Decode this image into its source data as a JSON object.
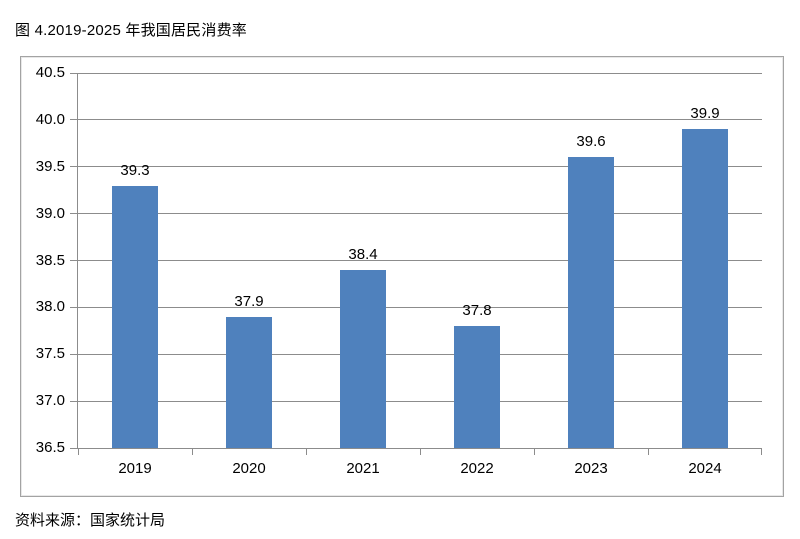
{
  "title": "图 4.2019-2025 年我国居民消费率",
  "source": "资料来源：国家统计局",
  "chart_data": {
    "type": "bar",
    "title": "图 4.2019-2025 年我国居民消费率",
    "categories": [
      "2019",
      "2020",
      "2021",
      "2022",
      "2023",
      "2024"
    ],
    "values": [
      39.3,
      37.9,
      38.4,
      37.8,
      39.6,
      39.9
    ],
    "data_labels": [
      "39.3",
      "37.9",
      "38.4",
      "37.8",
      "39.6",
      "39.9"
    ],
    "xlabel": "",
    "ylabel": "",
    "ylim": [
      36.5,
      40.5
    ],
    "ytick_step": 0.5,
    "yticks": [
      "40.5",
      "40.0",
      "39.5",
      "39.0",
      "38.5",
      "38.0",
      "37.5",
      "37.0",
      "36.5"
    ],
    "grid": true,
    "legend": "none",
    "colors": {
      "bar_fill": "#4F81BD",
      "gridline": "#8C8C8C",
      "axis": "#8C8C8C",
      "frame_border": "#A3A3A3",
      "text": "#000000"
    }
  }
}
